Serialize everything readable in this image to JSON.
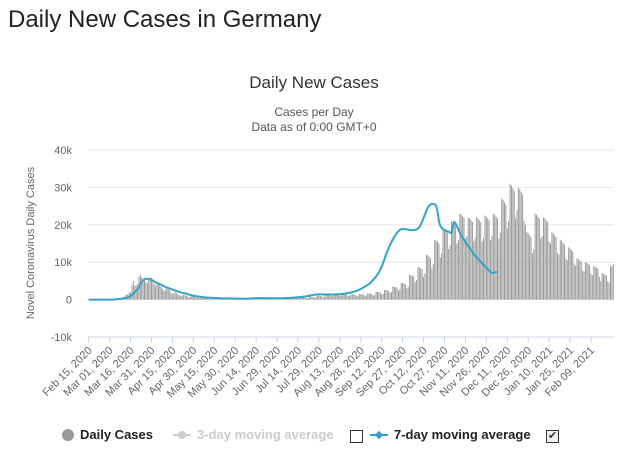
{
  "page": {
    "heading": "Daily New Cases in Germany"
  },
  "chart_data": {
    "type": "bar",
    "title": "Daily New Cases",
    "subtitle_line1": "Cases per Day",
    "subtitle_line2": "Data as of 0:00 GMT+0",
    "ylabel": "Novel Coronavirus Daily Cases",
    "ylim": [
      -10000,
      40000
    ],
    "y_ticks": [
      -10000,
      0,
      10000,
      20000,
      30000,
      40000
    ],
    "y_tick_labels": [
      "-10k",
      "0",
      "10k",
      "20k",
      "30k",
      "40k"
    ],
    "x_tick_labels": [
      "Feb 15, 2020",
      "Mar 01, 2020",
      "Mar 16, 2020",
      "Mar 31, 2020",
      "Apr 15, 2020",
      "Apr 30, 2020",
      "May 15, 2020",
      "May 30, 2020",
      "Jun 14, 2020",
      "Jun 29, 2020",
      "Jul 14, 2020",
      "Jul 29, 2020",
      "Aug 13, 2020",
      "Aug 28, 2020",
      "Sep 12, 2020",
      "Sep 27, 2020",
      "Oct 12, 2020",
      "Oct 27, 2020",
      "Nov 11, 2020",
      "Nov 26, 2020",
      "Dec 11, 2020",
      "Dec 26, 2020",
      "Jan 10, 2021",
      "Jan 25, 2021",
      "Feb 09, 2021"
    ],
    "tick_interval_days": 15,
    "grid": true,
    "legend_placement": "bottom",
    "colors": {
      "bars": "#999999",
      "avg3": "#cccccc",
      "avg7": "#33a3c8",
      "grid": "#e6e6e6"
    },
    "series": [
      {
        "name": "Daily Cases",
        "kind": "bars",
        "visible": true,
        "values": [
          0,
          0,
          0,
          0,
          0,
          0,
          0,
          0,
          0,
          0,
          0,
          16,
          1,
          6,
          2,
          20,
          8,
          45,
          111,
          196,
          230,
          317,
          159,
          319,
          337,
          611,
          1047,
          1247,
          1450,
          1903,
          1944,
          3880,
          5019,
          3725,
          3796,
          4051,
          6010,
          6657,
          5969,
          5500,
          5400,
          4800,
          4400,
          5200,
          6100,
          5800,
          5500,
          4100,
          3700,
          4100,
          4400,
          3900,
          3400,
          2800,
          2300,
          2600,
          3100,
          2800,
          2500,
          1800,
          1500,
          1700,
          2000,
          1700,
          1400,
          1200,
          900,
          1000,
          1300,
          1200,
          1000,
          800,
          650,
          750,
          900,
          850,
          750,
          600,
          500,
          550,
          700,
          650,
          600,
          480,
          400,
          450,
          600,
          550,
          480,
          420,
          300,
          400,
          560,
          500,
          460,
          380,
          300,
          350,
          500,
          450,
          410,
          360,
          280,
          300,
          450,
          400,
          380,
          340,
          250,
          300,
          400,
          380,
          350,
          300,
          220,
          280,
          520,
          600,
          560,
          480,
          350,
          400,
          620,
          580,
          520,
          460,
          330,
          380,
          550,
          520,
          470,
          420,
          310,
          350,
          500,
          470,
          430,
          390,
          290,
          340,
          520,
          500,
          470,
          430,
          320,
          380,
          600,
          580,
          550,
          500,
          370,
          440,
          700,
          680,
          650,
          600,
          450,
          520,
          850,
          820,
          780,
          720,
          540,
          640,
          1050,
          1020,
          970,
          900,
          680,
          800,
          1400,
          1350,
          1300,
          1200,
          900,
          1000,
          1600,
          1550,
          1480,
          1380,
          1040,
          1150,
          1500,
          1450,
          1400,
          1320,
          990,
          1100,
          1450,
          1400,
          1360,
          1280,
          950,
          1050,
          1500,
          1480,
          1430,
          1360,
          1020,
          1150,
          1650,
          1620,
          1580,
          1500,
          1120,
          1250,
          2100,
          2050,
          1990,
          1880,
          1410,
          1600,
          2600,
          2550,
          2480,
          2350,
          1760,
          2000,
          3500,
          3420,
          3350,
          3200,
          2400,
          2700,
          4500,
          4400,
          4300,
          4100,
          3080,
          3500,
          6600,
          6500,
          6400,
          6200,
          4650,
          5200,
          8800,
          8600,
          8400,
          8100,
          6080,
          7000,
          12000,
          11800,
          11500,
          11000,
          8250,
          9500,
          16000,
          15800,
          15500,
          15000,
          11250,
          12500,
          19000,
          18700,
          18400,
          18000,
          13500,
          14500,
          21000,
          20700,
          20400,
          20000,
          15000,
          16000,
          23000,
          22700,
          22300,
          21800,
          16350,
          17000,
          22000,
          21700,
          21300,
          20800,
          15600,
          16500,
          22000,
          21700,
          21200,
          20700,
          15500,
          16500,
          22500,
          22200,
          21700,
          21200,
          15900,
          17000,
          23000,
          22700,
          22200,
          21700,
          16300,
          18000,
          27000,
          26600,
          26000,
          25400,
          19050,
          21000,
          31000,
          30500,
          29800,
          29000,
          21750,
          24000,
          30000,
          29500,
          28800,
          28000,
          21000,
          20000,
          18000,
          17700,
          17200,
          16700,
          12500,
          13500,
          23000,
          22700,
          22200,
          21700,
          16300,
          17000,
          22000,
          21700,
          21200,
          20700,
          15500,
          15000,
          18000,
          17700,
          17200,
          16700,
          12500,
          12000,
          16000,
          15700,
          15200,
          14700,
          11000,
          10500,
          14000,
          13700,
          13300,
          12800,
          9600,
          9000,
          11000,
          10800,
          10500,
          10200,
          7650,
          7500,
          10000,
          9800,
          9500,
          9200,
          6900,
          6500,
          9000,
          8800,
          8500,
          8200,
          6150,
          5000,
          7000,
          6900,
          6700,
          6500,
          4900,
          4500,
          9000,
          8800,
          9500
        ]
      },
      {
        "name": "3-day moving average",
        "kind": "line",
        "visible": false,
        "marker": "circle"
      },
      {
        "name": "7-day moving average",
        "kind": "line",
        "visible": true,
        "marker": "diamond",
        "values": [
          0,
          0,
          0,
          0,
          0,
          0,
          0,
          0,
          0,
          0,
          0,
          2,
          2,
          3,
          4,
          7,
          8,
          12,
          27,
          55,
          88,
          129,
          155,
          202,
          259,
          325,
          384,
          470,
          570,
          726,
          940,
          1238,
          1607,
          1972,
          2372,
          2698,
          3161,
          4082,
          4729,
          5164,
          5447,
          5624,
          5533,
          5549,
          5367,
          5228,
          5052,
          4821,
          4586,
          4453,
          4277,
          4113,
          3990,
          3751,
          3538,
          3395,
          3245,
          3107,
          2968,
          2841,
          2703,
          2549,
          2404,
          2278,
          2159,
          2066,
          1919,
          1810,
          1714,
          1657,
          1557,
          1443,
          1311,
          1202,
          1119,
          1053,
          986,
          913,
          861,
          806,
          751,
          703,
          665,
          614,
          574,
          539,
          524,
          504,
          487,
          468,
          453,
          427,
          411,
          397,
          383,
          369,
          356,
          342,
          336,
          329,
          317,
          309,
          301,
          293,
          286,
          279,
          272,
          266,
          259,
          251,
          245,
          238,
          232,
          226,
          244,
          274,
          304,
          341,
          363,
          370,
          382,
          383,
          387,
          385,
          381,
          380,
          376,
          375,
          372,
          370,
          369,
          365,
          361,
          357,
          355,
          354,
          356,
          361,
          370,
          379,
          392,
          406,
          420,
          437,
          456,
          477,
          500,
          528,
          556,
          586,
          621,
          657,
          699,
          743,
          792,
          846,
          908,
          971,
          1042,
          1119,
          1196,
          1265,
          1317,
          1353,
          1375,
          1396,
          1398,
          1389,
          1381,
          1371,
          1363,
          1353,
          1355,
          1356,
          1358,
          1362,
          1371,
          1384,
          1404,
          1427,
          1457,
          1489,
          1531,
          1578,
          1630,
          1689,
          1754,
          1828,
          1908,
          2003,
          2108,
          2224,
          2353,
          2496,
          2657,
          2843,
          3044,
          3262,
          3488,
          3721,
          3962,
          4232,
          4523,
          4880,
          5290,
          5743,
          6211,
          6729,
          7274,
          8024,
          8869,
          9800,
          10813,
          11893,
          12899,
          13802,
          14651,
          15427,
          16137,
          16776,
          17333,
          17867,
          18279,
          18626,
          18825,
          18903,
          18903,
          18833,
          18761,
          18690,
          18612,
          18554,
          18577,
          18598,
          18655,
          18769,
          18998,
          19393,
          20066,
          20884,
          21827,
          22798,
          23740,
          24520,
          25155,
          25451,
          25585,
          25592,
          25480,
          25144,
          23700,
          21000,
          19700,
          19200,
          18850,
          18660,
          18430,
          18270,
          18160,
          17900,
          17800,
          19500,
          20800,
          20300,
          19600,
          18700,
          17900,
          17100,
          16500,
          16000,
          15400,
          14800,
          14300,
          13800,
          13300,
          12700,
          12200,
          11700,
          11300,
          10900,
          10500,
          10100,
          9700,
          9300,
          8900,
          8500,
          8100,
          7700,
          7400,
          7100,
          7100,
          7300,
          7300,
          7400
        ]
      }
    ]
  },
  "legend": {
    "daily_cases": "Daily Cases",
    "avg3": "3-day moving average",
    "avg7": "7-day moving average"
  }
}
